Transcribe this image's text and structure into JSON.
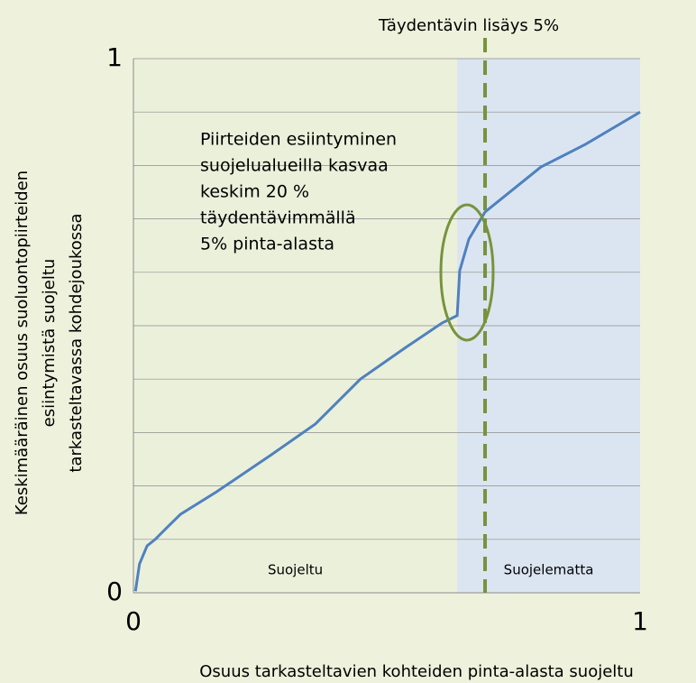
{
  "chart_data": {
    "type": "line",
    "ylabel": [
      "Keskimääräinen osuus suoluontopiirteiden",
      "esiintymistä suojeltu",
      "tarkasteltavassa kohdejoukossa"
    ],
    "xlabel": "Osuus tarkasteltavien kohteiden pinta-alasta suojeltu",
    "annotation": [
      "Piirteiden esiintyminen",
      "suojelualueilla kasvaa",
      "keskim 20 %",
      "täydentävimmällä",
      "5% pinta-alasta"
    ],
    "regions": [
      {
        "label": "Suojeltu",
        "start": 0,
        "end": 0.639,
        "color": "#ebf0db"
      },
      {
        "label": "Suojelematta",
        "start": 0.639,
        "end": 1,
        "color": "#dbe5f1"
      }
    ],
    "vline": {
      "label": "Täydentävin lisäys 5%",
      "x": 0.694,
      "color": "#77933c"
    },
    "xlim": [
      0,
      1
    ],
    "ylim": [
      0,
      1
    ],
    "xticks": [
      0,
      1
    ],
    "yticks": [
      0,
      1
    ],
    "ygridlines": [
      0.1,
      0.2,
      0.3,
      0.4,
      0.5,
      0.6,
      0.7,
      0.8,
      0.9,
      1
    ],
    "series": [
      {
        "color": "#4f81bd",
        "x": [
          0.004,
          0.012,
          0.027,
          0.043,
          0.066,
          0.093,
          0.164,
          0.27,
          0.359,
          0.448,
          0.537,
          0.609,
          0.639,
          0.644,
          0.662,
          0.694,
          0.804,
          0.893,
          1
        ],
        "values": [
          0.003,
          0.054,
          0.088,
          0.1,
          0.122,
          0.147,
          0.189,
          0.257,
          0.316,
          0.4,
          0.459,
          0.505,
          0.519,
          0.603,
          0.662,
          0.713,
          0.797,
          0.84,
          0.9
        ]
      }
    ]
  }
}
